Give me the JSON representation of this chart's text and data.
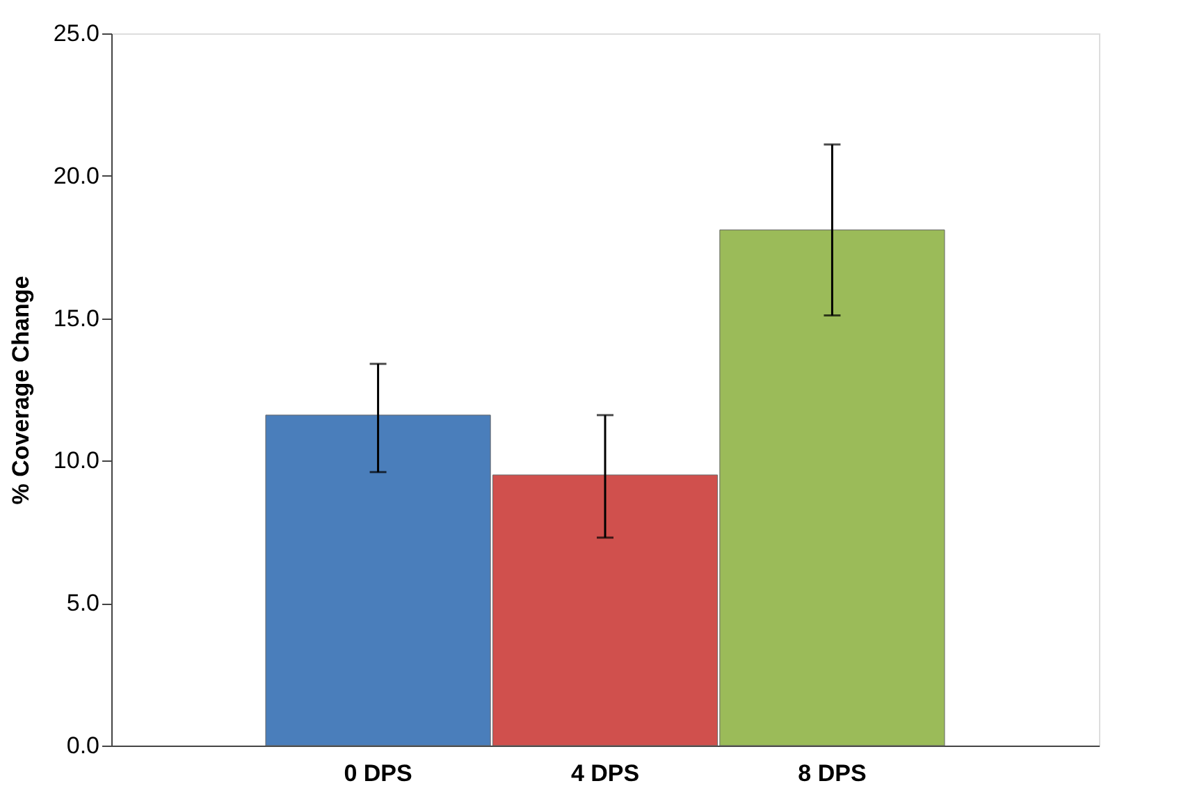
{
  "chart_data": {
    "type": "bar",
    "ylabel": "% Coverage Change",
    "categories": [
      "0 DPS",
      "4 DPS",
      "8 DPS"
    ],
    "values": [
      11.6,
      9.5,
      18.1
    ],
    "colors": [
      "#4a7ebb",
      "#d0504d",
      "#9bbb59"
    ],
    "errors": [
      [
        9.6,
        13.4
      ],
      [
        7.3,
        11.6
      ],
      [
        15.1,
        21.1
      ]
    ],
    "ylim": [
      0,
      25
    ],
    "yticks": [
      {
        "value": 0,
        "label": "0.0"
      },
      {
        "value": 5,
        "label": "5.0"
      },
      {
        "value": 10,
        "label": "10.0"
      },
      {
        "value": 15,
        "label": "15.0"
      },
      {
        "value": 20,
        "label": "20.0"
      },
      {
        "value": 25,
        "label": "25.0"
      }
    ],
    "grid": false
  }
}
